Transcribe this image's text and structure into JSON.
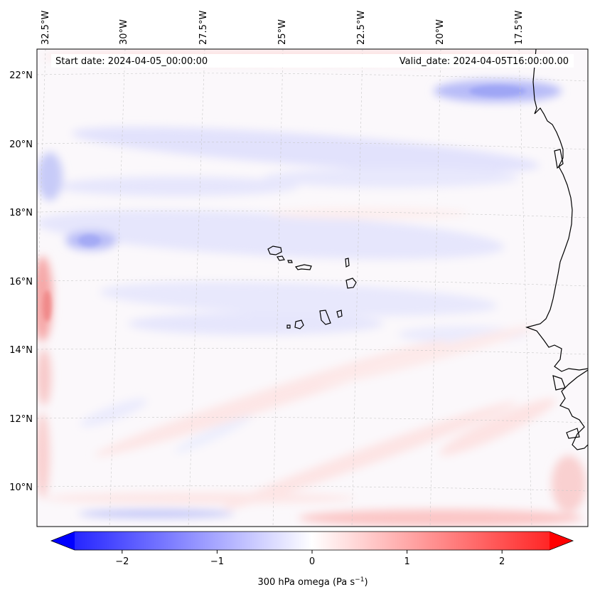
{
  "map": {
    "start_date": "Start date: 2024-04-05_00:00:00",
    "valid_date": "Valid_date: 2024-04-05T16:00:00.00",
    "lon_labels": [
      "32.5°W",
      "30°W",
      "27.5°W",
      "25°W",
      "22.5°W",
      "20°W",
      "17.5°W"
    ],
    "lat_labels": [
      "22°N",
      "20°N",
      "18°N",
      "16°N",
      "14°N",
      "12°N",
      "10°N"
    ],
    "field": "300 hPa omega",
    "gridlines": true,
    "colormap": "bwr"
  },
  "colorbar": {
    "label": "300 hPa omega (Pa s",
    "label_sup": "−1",
    "label_close": ")",
    "tick_values": [
      -2,
      -1,
      0,
      1,
      2
    ],
    "tick_labels": [
      "−2",
      "−1",
      "0",
      "1",
      "2"
    ],
    "range": [
      -2.5,
      2.5
    ],
    "extend": "both",
    "colors": {
      "min": "#0000ff",
      "mid": "#ffffff",
      "max": "#ff0000"
    }
  }
}
